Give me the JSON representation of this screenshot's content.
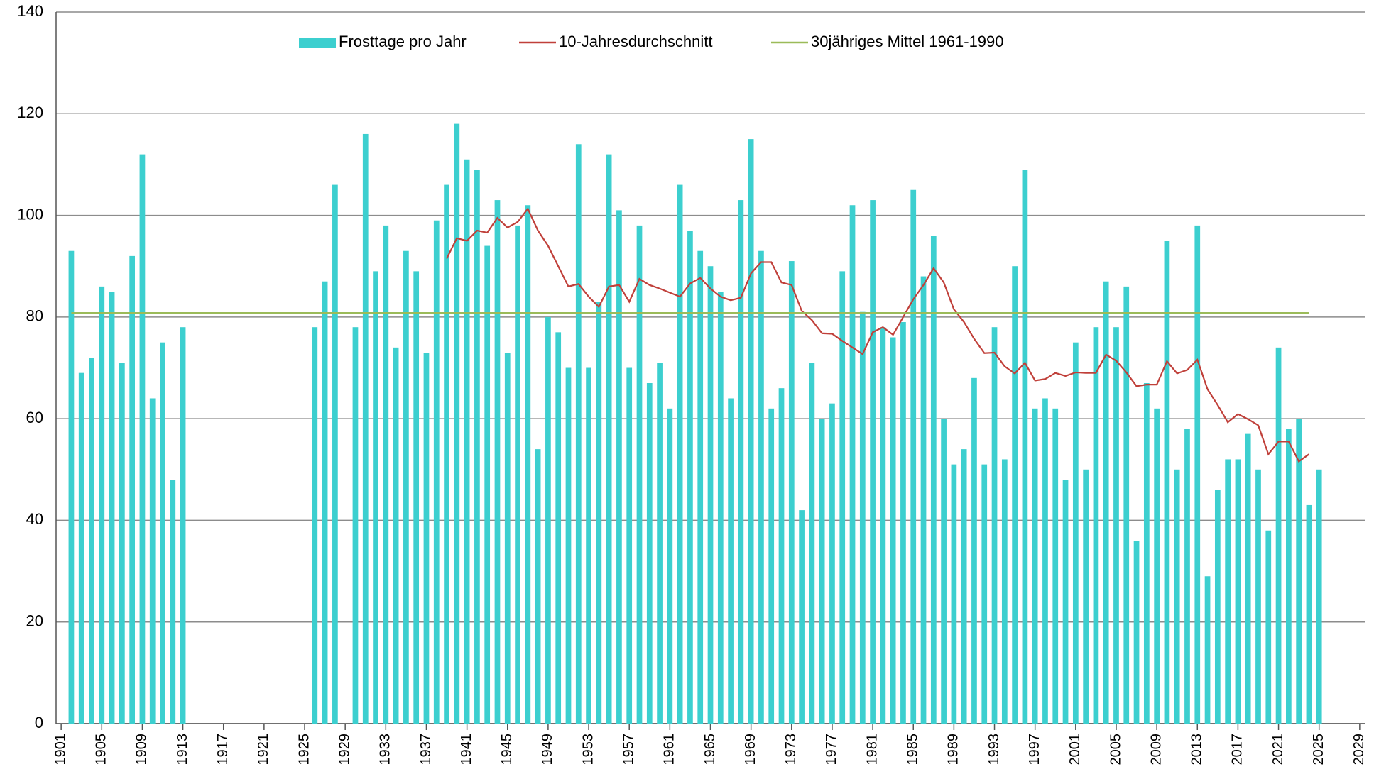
{
  "chart_data": {
    "type": "bar",
    "x": [
      1902,
      1903,
      1904,
      1905,
      1906,
      1907,
      1908,
      1909,
      1910,
      1911,
      1912,
      1913,
      1914,
      1915,
      1916,
      1917,
      1918,
      1919,
      1920,
      1921,
      1922,
      1923,
      1924,
      1925,
      1926,
      1927,
      1928,
      1929,
      1930,
      1931,
      1932,
      1933,
      1934,
      1935,
      1936,
      1937,
      1938,
      1939,
      1940,
      1941,
      1942,
      1943,
      1944,
      1945,
      1946,
      1947,
      1948,
      1949,
      1950,
      1951,
      1952,
      1953,
      1954,
      1955,
      1956,
      1957,
      1958,
      1959,
      1960,
      1961,
      1962,
      1963,
      1964,
      1965,
      1966,
      1967,
      1968,
      1969,
      1970,
      1971,
      1972,
      1973,
      1974,
      1975,
      1976,
      1977,
      1978,
      1979,
      1980,
      1981,
      1982,
      1983,
      1984,
      1985,
      1986,
      1987,
      1988,
      1989,
      1990,
      1991,
      1992,
      1993,
      1994,
      1995,
      1996,
      1997,
      1998,
      1999,
      2000,
      2001,
      2002,
      2003,
      2004,
      2005,
      2006,
      2007,
      2008,
      2009,
      2010,
      2011,
      2012,
      2013,
      2014,
      2015,
      2016,
      2017,
      2018,
      2019,
      2020,
      2021,
      2022,
      2023,
      2024,
      2025
    ],
    "series": [
      {
        "name": "Frosttage pro Jahr",
        "type": "bar",
        "color": "#3ccfcf",
        "values": [
          93,
          69,
          72,
          86,
          85,
          71,
          92,
          112,
          64,
          75,
          48,
          78,
          null,
          null,
          null,
          null,
          null,
          null,
          null,
          null,
          null,
          null,
          null,
          null,
          78,
          87,
          106,
          null,
          78,
          116,
          89,
          98,
          74,
          93,
          89,
          73,
          99,
          106,
          118,
          111,
          109,
          94,
          103,
          73,
          98,
          102,
          54,
          80,
          77,
          70,
          114,
          70,
          83,
          112,
          101,
          70,
          98,
          67,
          71,
          62,
          106,
          97,
          93,
          90,
          85,
          64,
          103,
          115,
          93,
          62,
          66,
          91,
          42,
          71,
          60,
          63,
          89,
          102,
          81,
          103,
          78,
          76,
          79,
          105,
          88,
          96,
          60,
          51,
          54,
          68,
          51,
          78,
          52,
          90,
          109,
          62,
          64,
          62,
          48,
          75,
          50,
          78,
          87,
          78,
          86,
          36,
          67,
          62,
          95,
          50,
          58,
          98,
          29,
          46,
          52,
          52,
          57,
          50,
          38,
          74,
          58,
          60,
          43,
          50
        ]
      },
      {
        "name": "10-Jahresdurchschnitt",
        "type": "line",
        "color": "#c0403a",
        "values": [
          null,
          null,
          null,
          null,
          null,
          null,
          null,
          null,
          null,
          null,
          null,
          null,
          null,
          null,
          null,
          null,
          null,
          null,
          null,
          null,
          null,
          null,
          null,
          null,
          null,
          null,
          null,
          null,
          null,
          null,
          null,
          null,
          null,
          null,
          null,
          null,
          null,
          91.5,
          95.5,
          95,
          97,
          96.6,
          99.5,
          97.6,
          98.7,
          101.3,
          97,
          94,
          90,
          86,
          86.5,
          84,
          82,
          86,
          86.3,
          83,
          87.5,
          86.3,
          85.6,
          84.8,
          84,
          86.6,
          87.7,
          85.6,
          84,
          83.3,
          83.8,
          88.6,
          90.8,
          90.8,
          86.8,
          86.3,
          81.2,
          79.4,
          76.8,
          76.7,
          75.3,
          74,
          72.7,
          77,
          78,
          76.5,
          80,
          83.5,
          86.3,
          89.6,
          86.8,
          81.5,
          79,
          75.7,
          72.9,
          73,
          70.3,
          68.9,
          71,
          67.5,
          67.8,
          69,
          68.4,
          69.1,
          69,
          69,
          72.6,
          71.4,
          69.1,
          66.4,
          66.7,
          66.7,
          71.3,
          68.9,
          69.6,
          71.6,
          65.8,
          62.7,
          59.3,
          60.9,
          59.9,
          58.7,
          53,
          55.5,
          55.5,
          51.6,
          53,
          null
        ]
      },
      {
        "name": "30jähriges Mittel 1961-1990",
        "type": "line",
        "color": "#9bbb59",
        "values": [
          80.8,
          80.8,
          80.8,
          80.8,
          80.8,
          80.8,
          80.8,
          80.8,
          80.8,
          80.8,
          80.8,
          80.8,
          80.8,
          80.8,
          80.8,
          80.8,
          80.8,
          80.8,
          80.8,
          80.8,
          80.8,
          80.8,
          80.8,
          80.8,
          80.8,
          80.8,
          80.8,
          80.8,
          80.8,
          80.8,
          80.8,
          80.8,
          80.8,
          80.8,
          80.8,
          80.8,
          80.8,
          80.8,
          80.8,
          80.8,
          80.8,
          80.8,
          80.8,
          80.8,
          80.8,
          80.8,
          80.8,
          80.8,
          80.8,
          80.8,
          80.8,
          80.8,
          80.8,
          80.8,
          80.8,
          80.8,
          80.8,
          80.8,
          80.8,
          80.8,
          80.8,
          80.8,
          80.8,
          80.8,
          80.8,
          80.8,
          80.8,
          80.8,
          80.8,
          80.8,
          80.8,
          80.8,
          80.8,
          80.8,
          80.8,
          80.8,
          80.8,
          80.8,
          80.8,
          80.8,
          80.8,
          80.8,
          80.8,
          80.8,
          80.8,
          80.8,
          80.8,
          80.8,
          80.8,
          80.8,
          80.8,
          80.8,
          80.8,
          80.8,
          80.8,
          80.8,
          80.8,
          80.8,
          80.8,
          80.8,
          80.8,
          80.8,
          80.8,
          80.8,
          80.8,
          80.8,
          80.8,
          80.8,
          80.8,
          80.8,
          80.8,
          80.8,
          80.8,
          80.8,
          80.8,
          80.8,
          80.8,
          80.8,
          80.8,
          80.8,
          80.8,
          80.8,
          80.8,
          null
        ]
      }
    ],
    "xlim": [
      1900.5,
      2029.5
    ],
    "xticks": [
      1901,
      1905,
      1909,
      1913,
      1917,
      1921,
      1925,
      1929,
      1933,
      1937,
      1941,
      1945,
      1949,
      1953,
      1957,
      1961,
      1965,
      1969,
      1973,
      1977,
      1981,
      1985,
      1989,
      1993,
      1997,
      2001,
      2005,
      2009,
      2013,
      2017,
      2021,
      2025,
      2029
    ],
    "ylim": [
      0,
      140
    ],
    "yticks": [
      0,
      20,
      40,
      60,
      80,
      100,
      120,
      140
    ],
    "grid": true,
    "legend": "top"
  }
}
